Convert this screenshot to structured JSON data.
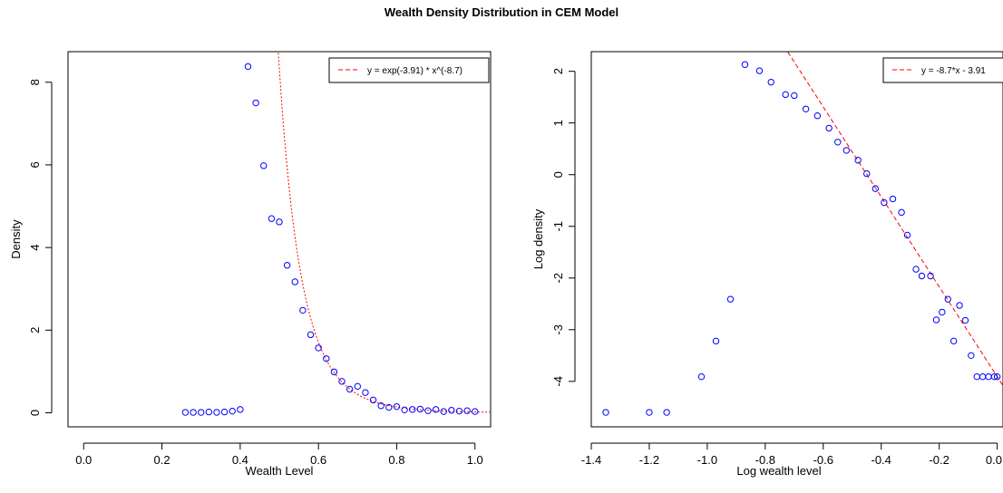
{
  "figure": {
    "title": "Wealth Density Distribution in CEM Model"
  },
  "colors": {
    "points": "#0000ff",
    "fit_line": "#ff0000",
    "axes": "#000000"
  },
  "chart_data": [
    {
      "type": "scatter",
      "xlabel": "Wealth Level",
      "ylabel": "Density",
      "xlim": [
        -0.04,
        1.04
      ],
      "ylim": [
        -0.34,
        8.74
      ],
      "xticks": [
        "0.0",
        "0.2",
        "0.4",
        "0.6",
        "0.8",
        "1.0"
      ],
      "xtick_values": [
        0.0,
        0.2,
        0.4,
        0.6,
        0.8,
        1.0
      ],
      "yticks": [
        "0",
        "2",
        "4",
        "6",
        "8"
      ],
      "ytick_values": [
        0,
        2,
        4,
        6,
        8
      ],
      "series": [
        {
          "name": "",
          "x": [
            0.26,
            0.28,
            0.3,
            0.32,
            0.34,
            0.36,
            0.38,
            0.4,
            0.42,
            0.44,
            0.46,
            0.48,
            0.5,
            0.52,
            0.54,
            0.56,
            0.58,
            0.6,
            0.62,
            0.64,
            0.66,
            0.68,
            0.7,
            0.72,
            0.74,
            0.76,
            0.78,
            0.8,
            0.82,
            0.84,
            0.86,
            0.88,
            0.9,
            0.92,
            0.94,
            0.96,
            0.98,
            1.0
          ],
          "y": [
            0.01,
            0.01,
            0.01,
            0.02,
            0.01,
            0.02,
            0.04,
            0.08,
            8.38,
            7.5,
            5.98,
            4.7,
            4.62,
            3.57,
            3.17,
            2.48,
            1.89,
            1.57,
            1.31,
            0.99,
            0.76,
            0.57,
            0.64,
            0.49,
            0.31,
            0.17,
            0.13,
            0.15,
            0.07,
            0.08,
            0.09,
            0.05,
            0.08,
            0.03,
            0.06,
            0.04,
            0.05,
            0.03
          ]
        }
      ],
      "fit": {
        "label": "y = exp(-3.91) * x^(-8.7)",
        "intercept": -3.91,
        "exponent": -8.7
      },
      "legend": "top-right"
    },
    {
      "type": "scatter",
      "xlabel": "Log wealth level",
      "ylabel": "Log density",
      "xlim": [
        -1.4,
        0.02
      ],
      "ylim": [
        -4.88,
        2.38
      ],
      "xticks": [
        "-1.4",
        "-1.2",
        "-1.0",
        "-0.8",
        "-0.6",
        "-0.4",
        "-0.2",
        "0.0"
      ],
      "xtick_values": [
        -1.4,
        -1.2,
        -1.0,
        -0.8,
        -0.6,
        -0.4,
        -0.2,
        0.0
      ],
      "yticks": [
        "-4",
        "-3",
        "-2",
        "-1",
        "0",
        "1",
        "2"
      ],
      "ytick_values": [
        -4,
        -3,
        -2,
        -1,
        0,
        1,
        2
      ],
      "series": [
        {
          "name": "",
          "x": [
            -1.35,
            -1.2,
            -1.14,
            -1.02,
            -0.97,
            -0.92,
            -0.87,
            -0.82,
            -0.78,
            -0.73,
            -0.7,
            -0.66,
            -0.62,
            -0.58,
            -0.55,
            -0.52,
            -0.48,
            -0.45,
            -0.42,
            -0.39,
            -0.36,
            -0.33,
            -0.31,
            -0.28,
            -0.26,
            -0.23,
            -0.21,
            -0.19,
            -0.17,
            -0.15,
            -0.13,
            -0.11,
            -0.09,
            -0.07,
            -0.05,
            -0.03,
            -0.01,
            0.0
          ],
          "y": [
            -4.6,
            -4.6,
            -4.6,
            -3.91,
            -3.22,
            -2.41,
            2.13,
            2.01,
            1.79,
            1.55,
            1.53,
            1.27,
            1.14,
            0.9,
            0.63,
            0.47,
            0.28,
            0.02,
            -0.27,
            -0.54,
            -0.47,
            -0.73,
            -1.17,
            -1.83,
            -1.96,
            -1.96,
            -2.81,
            -2.66,
            -2.41,
            -3.22,
            -2.53,
            -2.82,
            -3.5,
            -3.91,
            -3.91,
            -3.91,
            -3.91,
            -3.91
          ]
        }
      ],
      "fit": {
        "label": "y = -8.7*x - 3.91",
        "slope": -8.7,
        "intercept": -3.91
      },
      "legend": "top-right"
    }
  ]
}
